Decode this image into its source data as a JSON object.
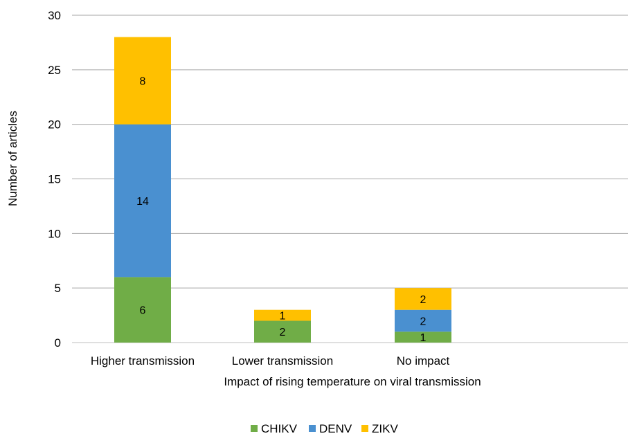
{
  "chart_data": {
    "type": "bar",
    "stacked": true,
    "title": "",
    "xlabel": "Impact of rising temperature on viral transmission",
    "ylabel": "Number of articles",
    "ylim": [
      0,
      30
    ],
    "yticks": [
      0,
      5,
      10,
      15,
      20,
      25,
      30
    ],
    "grid": true,
    "legend_position": "bottom",
    "categories": [
      "Higher transmission",
      "Lower transmission",
      "No impact"
    ],
    "series": [
      {
        "name": "CHIKV",
        "color": "#70AD47",
        "values": [
          6,
          2,
          1
        ]
      },
      {
        "name": "DENV",
        "color": "#4A90D0",
        "values": [
          14,
          0,
          2
        ]
      },
      {
        "name": "ZIKV",
        "color": "#FFC000",
        "values": [
          8,
          1,
          2
        ]
      }
    ]
  }
}
